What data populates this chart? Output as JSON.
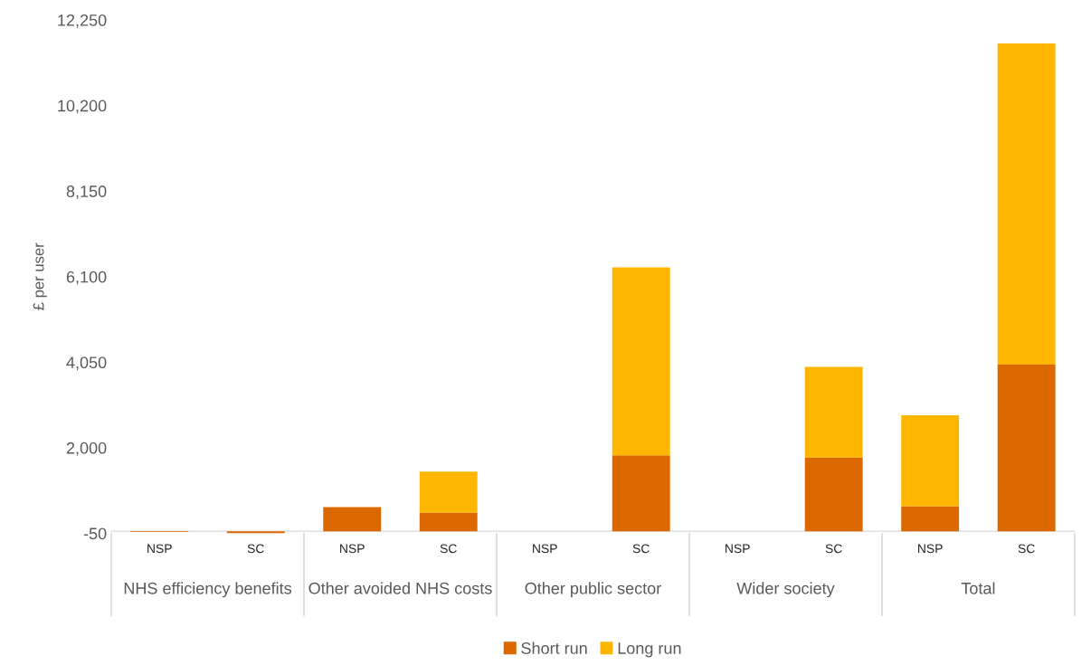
{
  "chart_data": {
    "type": "bar",
    "stacked": true,
    "ylabel": "£ per user",
    "categories": [
      "NSP",
      "SC",
      "NSP",
      "SC",
      "NSP",
      "SC",
      "NSP",
      "SC",
      "NSP",
      "SC"
    ],
    "annotations": [
      "NHS efficiency benefits",
      "Other avoided NHS costs",
      "Other public sector",
      "Wider society",
      "Total"
    ],
    "series": [
      {
        "name": "Short run",
        "color": "#dc6900",
        "values": [
          -20,
          -50,
          580,
          450,
          null,
          1820,
          null,
          1770,
          600,
          3990
        ]
      },
      {
        "name": "Long run",
        "color": "#ffb600",
        "values": [
          null,
          null,
          null,
          980,
          null,
          4500,
          null,
          2170,
          2180,
          7700
        ]
      }
    ],
    "ylim": [
      -50,
      12250
    ],
    "yticks": [
      -50,
      {
        "value": 2000,
        "label": "2,000"
      },
      {
        "value": 4050,
        "label": "4,050"
      },
      {
        "value": 6100,
        "label": "6,100"
      },
      {
        "value": 8150,
        "label": "8,150"
      },
      {
        "value": 10200,
        "label": "10,200"
      },
      {
        "value": 12250,
        "label": "12,250"
      }
    ],
    "grid": false,
    "legend": "bottom"
  }
}
